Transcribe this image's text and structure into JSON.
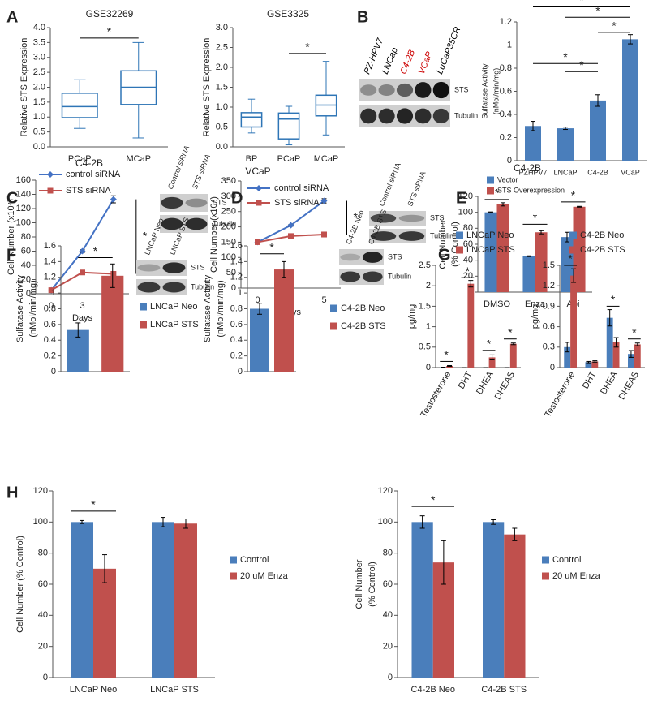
{
  "chart_data": [
    {
      "panel": "A",
      "type": "box",
      "title": "GSE32269",
      "y_label": "Relative STS Expression",
      "color": "#2e75b6",
      "categories": [
        "PCaP",
        "MCaP"
      ],
      "boxes": [
        {
          "whisker_low": 0.62,
          "q1": 0.98,
          "median": 1.35,
          "q3": 1.8,
          "whisker_high": 2.25
        },
        {
          "whisker_low": 0.3,
          "q1": 1.42,
          "median": 2.0,
          "q3": 2.55,
          "whisker_high": 3.5
        }
      ],
      "ylim": [
        0,
        4
      ],
      "yticks": [
        {
          "value": 0,
          "label": "0.0"
        },
        0.5,
        {
          "value": 1,
          "label": "1.0"
        },
        1.5,
        {
          "value": 2,
          "label": "2.0"
        },
        2.5,
        {
          "value": 3,
          "label": "3.0"
        },
        3.5,
        {
          "value": 4,
          "label": "4.0"
        }
      ],
      "significance": [
        {
          "label": "*",
          "between": [
            "PCaP",
            "MCaP"
          ],
          "y": 3.65
        }
      ]
    },
    {
      "type": "box",
      "title": "GSE3325",
      "y_label": "Relative STS Expression",
      "color": "#2e75b6",
      "categories": [
        "BP",
        "PCaP",
        "MCaP"
      ],
      "boxes": [
        {
          "whisker_low": 0.35,
          "q1": 0.5,
          "median": 0.75,
          "q3": 0.86,
          "whisker_high": 1.2
        },
        {
          "whisker_low": 0.05,
          "q1": 0.2,
          "median": 0.7,
          "q3": 0.85,
          "whisker_high": 1.02
        },
        {
          "whisker_low": 0.3,
          "q1": 0.78,
          "median": 1.05,
          "q3": 1.3,
          "whisker_high": 2.15
        }
      ],
      "ylim": [
        0,
        3
      ],
      "yticks": [
        {
          "value": 0,
          "label": "0.0"
        },
        0.5,
        {
          "value": 1,
          "label": "1.0"
        },
        1.5,
        {
          "value": 2,
          "label": "2.0"
        },
        2.5,
        {
          "value": 3,
          "label": "3.0"
        }
      ],
      "significance": [
        {
          "label": "*",
          "between": [
            "PCaP",
            "MCaP"
          ],
          "y": 2.35
        }
      ]
    },
    {
      "panel": "B",
      "type": "bar",
      "y_label": [
        "Sulfatase Activity",
        "(nMol/min/mg)"
      ],
      "color": "#4a7ebb",
      "categories": [
        "PZHPV7",
        "LNCaP",
        "C4-2B",
        "VCaP"
      ],
      "values": [
        0.3,
        0.28,
        0.52,
        1.05
      ],
      "errors": [
        0.04,
        0.01,
        0.05,
        0.04
      ],
      "ylim": [
        0,
        1.2
      ],
      "yticks": [
        0,
        0.2,
        0.4,
        0.6,
        0.8,
        1,
        1.2
      ],
      "significance": [
        {
          "label": "*",
          "between": [
            "PZHPV7",
            "VCaP"
          ],
          "y": 1.33
        },
        {
          "label": "*",
          "between": [
            "LNCaP",
            "VCaP"
          ],
          "y": 1.24
        },
        {
          "label": "*",
          "between": [
            "C4-2B",
            "VCaP"
          ],
          "y": 1.11
        },
        {
          "label": "*",
          "between": [
            "PZHPV7",
            "C4-2B"
          ],
          "y": 0.84
        },
        {
          "label": "*",
          "between": [
            "LNCaP",
            "C4-2B"
          ],
          "y": 0.77
        }
      ],
      "blot": {
        "lanes": [
          "PZ-HPV7",
          "LNCap",
          "C4-2B",
          "VCaP",
          "LuCaP35CR"
        ],
        "lane_colors": [
          "#000000",
          "#000000",
          "#cc0000",
          "#cc0000",
          "#000000"
        ],
        "bands": [
          "STS",
          "Tubulin"
        ]
      }
    },
    {
      "panel": "C",
      "type": "line",
      "title": "C4-2B",
      "y_label": "Cell Number (x10⁴)",
      "x_label": "Days",
      "categories": [
        "0",
        "3",
        "5"
      ],
      "series": [
        {
          "name": "control siRNA",
          "color": "#4472c4",
          "values": [
            5,
            60,
            133
          ],
          "errors": [
            1,
            2,
            5
          ]
        },
        {
          "name": "STS siRNA",
          "color": "#c0504d",
          "values": [
            5,
            30,
            28
          ],
          "errors": [
            1,
            2,
            2
          ]
        }
      ],
      "ylim": [
        0,
        160
      ],
      "yticks": [
        0,
        20,
        40,
        60,
        80,
        100,
        120,
        140,
        160
      ],
      "significance": [
        {
          "label": "*",
          "between": [
            "control siRNA",
            "STS siRNA"
          ]
        }
      ],
      "blot": {
        "lanes": [
          "Control siRNA",
          "STS siRNA"
        ],
        "bands": [
          "STS",
          "Tubulin"
        ]
      }
    },
    {
      "panel": "D",
      "type": "line",
      "title": "VCaP",
      "y_label": "Cell Number (x10⁴)",
      "x_label": "Days",
      "categories": [
        "0",
        "3",
        "5"
      ],
      "series": [
        {
          "name": "control siRNA",
          "color": "#4472c4",
          "values": [
            150,
            205,
            285
          ],
          "errors": [
            3,
            3,
            7
          ]
        },
        {
          "name": "STS siRNA",
          "color": "#c0504d",
          "values": [
            150,
            170,
            175
          ],
          "errors": [
            3,
            4,
            8
          ]
        }
      ],
      "ylim": [
        0,
        350
      ],
      "yticks": [
        0,
        50,
        100,
        150,
        200,
        250,
        300,
        350
      ],
      "significance": [
        {
          "label": "*",
          "between": [
            "control siRNA",
            "STS siRNA"
          ]
        }
      ],
      "blot": {
        "lanes": [
          "Control siRNA",
          "STS siRNA"
        ],
        "bands": [
          "STS",
          "Tubulin"
        ]
      }
    },
    {
      "panel": "E",
      "type": "bar",
      "title": "C4-2B",
      "y_label": [
        "Cell Number",
        "(% Control)"
      ],
      "categories": [
        "DMSO",
        "Enza",
        "Abi"
      ],
      "series": [
        {
          "name": "Vector",
          "color": "#4a7ebb",
          "values": [
            100,
            45,
            69
          ],
          "errors": [
            0.5,
            0.5,
            6
          ]
        },
        {
          "name": "STS Overexpression",
          "color": "#c0504d",
          "values": [
            110,
            75,
            107
          ],
          "errors": [
            2,
            2,
            0.5
          ]
        }
      ],
      "ylim": [
        0,
        120
      ],
      "yticks": [
        0,
        20,
        40,
        60,
        80,
        100,
        120
      ],
      "significance": [
        {
          "label": "*",
          "category": "DMSO",
          "y": 116
        },
        {
          "label": "*",
          "category": "Enza",
          "y": 85
        },
        {
          "label": "*",
          "category": "Abi",
          "y": 113
        }
      ]
    },
    {
      "panel": "F",
      "type": "bar",
      "y_label": [
        "Sulfatase Activity",
        "(nMol/min/mg)"
      ],
      "series": [
        {
          "name": "LNCaP Neo",
          "color": "#4a7ebb",
          "values": [
            0.53
          ],
          "errors": [
            0.09
          ]
        },
        {
          "name": "LNCaP STS",
          "color": "#c0504d",
          "values": [
            1.22
          ],
          "errors": [
            0.15
          ]
        }
      ],
      "ylim": [
        0,
        1.6
      ],
      "yticks": [
        0,
        0.2,
        0.4,
        0.6,
        0.8,
        1,
        1.2,
        1.4,
        1.6
      ],
      "significance": [
        {
          "label": "*",
          "between": [
            "LNCaP Neo",
            "LNCaP STS"
          ],
          "y": 1.45
        }
      ],
      "blot": {
        "lanes": [
          "LNCaP Neo",
          "LNCaP STS"
        ],
        "bands": [
          "STS",
          "Tubulin"
        ]
      }
    },
    {
      "type": "bar",
      "y_label": [
        "Sulfatase Activity",
        "(nMol/min/mg)"
      ],
      "series": [
        {
          "name": "C4-2B Neo",
          "color": "#4a7ebb",
          "values": [
            0.8
          ],
          "errors": [
            0.07
          ]
        },
        {
          "name": "C4-2B STS",
          "color": "#c0504d",
          "values": [
            1.3
          ],
          "errors": [
            0.1
          ]
        }
      ],
      "ylim": [
        0,
        1.6
      ],
      "yticks": [
        0,
        0.2,
        0.4,
        0.6,
        0.8,
        1,
        1.2,
        1.4,
        1.6
      ],
      "significance": [
        {
          "label": "*",
          "between": [
            "C4-2B Neo",
            "C4-2B STS"
          ],
          "y": 1.5
        }
      ],
      "blot": {
        "lanes": [
          "C4-2B Neo",
          "C4-2B STS"
        ],
        "bands": [
          "STS",
          "Tubulin"
        ]
      }
    },
    {
      "panel": "G",
      "type": "bar",
      "y_label": "pg/mg",
      "categories": [
        "Testosterone",
        "DHT",
        "DHEA",
        "DHEAS"
      ],
      "series": [
        {
          "name": "LNCaP Neo",
          "color": "#4a7ebb",
          "values": [
            0.01,
            0,
            0,
            0
          ],
          "errors": [
            0,
            0,
            0,
            0
          ]
        },
        {
          "name": "LNCaP STS",
          "color": "#c0504d",
          "values": [
            0.04,
            2.05,
            0.25,
            0.58
          ],
          "errors": [
            0.01,
            0.08,
            0.06,
            0.02
          ]
        }
      ],
      "ylim": [
        0,
        2.5
      ],
      "yticks": [
        0,
        0.5,
        1,
        1.5,
        2,
        2.5
      ],
      "significance": [
        {
          "label": "*",
          "category": "Testosterone",
          "y": 0.15
        },
        {
          "label": "*",
          "category": "DHT",
          "y": 2.2
        },
        {
          "label": "*",
          "category": "DHEA",
          "y": 0.42
        },
        {
          "label": "*",
          "category": "DHEAS",
          "y": 0.7
        }
      ]
    },
    {
      "type": "bar",
      "y_label": "pg/mg",
      "categories": [
        "Testosterone",
        "DHT",
        "DHEA",
        "DHEAS"
      ],
      "series": [
        {
          "name": "C4-2B Neo",
          "color": "#4a7ebb",
          "values": [
            0.3,
            0.08,
            0.73,
            0.2
          ],
          "errors": [
            0.07,
            0.01,
            0.12,
            0.05
          ]
        },
        {
          "name": "C4-2B STS",
          "color": "#c0504d",
          "values": [
            1.35,
            0.09,
            0.37,
            0.34
          ],
          "errors": [
            0.1,
            0.01,
            0.07,
            0.02
          ]
        }
      ],
      "ylim": [
        0,
        1.5
      ],
      "yticks": [
        0,
        0.3,
        0.6,
        0.9,
        1.2,
        1.5
      ],
      "significance": [
        {
          "label": "*",
          "category": "Testosterone",
          "y": 1.5
        },
        {
          "label": "*",
          "category": "DHEA",
          "y": 0.9
        },
        {
          "label": "*",
          "category": "DHEAS",
          "y": 0.42
        }
      ]
    },
    {
      "panel": "H",
      "type": "bar",
      "y_label": "Cell Number (% Control)",
      "categories": [
        "LNCaP Neo",
        "LNCaP STS"
      ],
      "series": [
        {
          "name": "Control",
          "color": "#4a7ebb",
          "values": [
            100,
            100
          ],
          "errors": [
            1,
            3
          ]
        },
        {
          "name": "20 uM Enza",
          "color": "#c0504d",
          "values": [
            70,
            99
          ],
          "errors": [
            9,
            3
          ]
        }
      ],
      "ylim": [
        0,
        120
      ],
      "yticks": [
        0,
        20,
        40,
        60,
        80,
        100,
        120
      ],
      "significance": [
        {
          "label": "*",
          "category": "LNCaP Neo",
          "y": 107
        }
      ]
    },
    {
      "type": "bar",
      "y_label": [
        "Cell Number",
        "(% Control)"
      ],
      "categories": [
        "C4-2B Neo",
        "C4-2B STS"
      ],
      "series": [
        {
          "name": "Control",
          "color": "#4a7ebb",
          "values": [
            100,
            100
          ],
          "errors": [
            4,
            1.5
          ]
        },
        {
          "name": "20 uM Enza",
          "color": "#c0504d",
          "values": [
            74,
            92
          ],
          "errors": [
            14,
            4
          ]
        }
      ],
      "ylim": [
        0,
        120
      ],
      "yticks": [
        0,
        20,
        40,
        60,
        80,
        100,
        120
      ],
      "significance": [
        {
          "label": "*",
          "category": "C4-2B Neo",
          "y": 110
        }
      ]
    }
  ]
}
